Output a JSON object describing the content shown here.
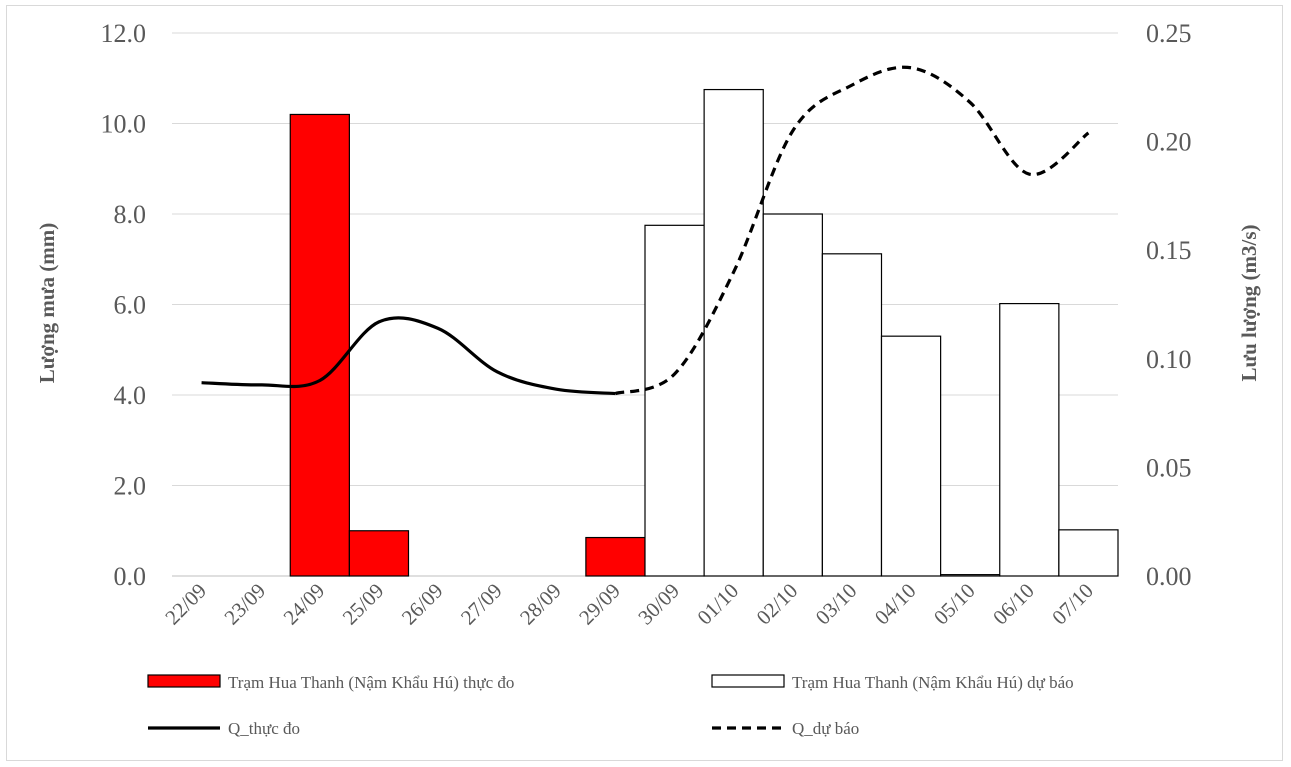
{
  "chart_data": {
    "type": "bar",
    "categories": [
      "22/09",
      "23/09",
      "24/09",
      "25/09",
      "26/09",
      "27/09",
      "28/09",
      "29/09",
      "30/09",
      "01/10",
      "02/10",
      "03/10",
      "04/10",
      "05/10",
      "06/10",
      "07/10"
    ],
    "ylabel_left": "Lượng mưa (mm)",
    "ylabel_right": "Lưu lượng (m3/s)",
    "ylim_left": [
      0,
      12
    ],
    "ylim_right": [
      0,
      0.25
    ],
    "left_ticks": [
      "0.0",
      "2.0",
      "4.0",
      "6.0",
      "8.0",
      "10.0",
      "12.0"
    ],
    "right_ticks": [
      "0.00",
      "0.05",
      "0.10",
      "0.15",
      "0.20",
      "0.25"
    ],
    "grid": true,
    "series": [
      {
        "name": "Trạm Hua Thanh (Nậm Khẩu Hú) thực đo",
        "kind": "bar",
        "axis": "left",
        "color": "#ff0000",
        "values": [
          null,
          null,
          10.2,
          1.0,
          null,
          null,
          null,
          0.85,
          null,
          null,
          null,
          null,
          null,
          null,
          null,
          null
        ]
      },
      {
        "name": "Trạm Hua Thanh (Nậm Khẩu Hú) dự báo",
        "kind": "bar",
        "axis": "left",
        "color": "#ffffff",
        "values": [
          null,
          null,
          null,
          null,
          null,
          null,
          null,
          null,
          7.75,
          10.75,
          8.0,
          7.12,
          5.3,
          0.03,
          6.02,
          1.02
        ]
      },
      {
        "name": "Q_thực đo",
        "kind": "line",
        "axis": "right",
        "style": "solid",
        "color": "#000000",
        "values": [
          0.089,
          0.088,
          0.09,
          0.117,
          0.114,
          0.094,
          0.086,
          0.084,
          null,
          null,
          null,
          null,
          null,
          null,
          null,
          null
        ]
      },
      {
        "name": "Q_dự báo",
        "kind": "line",
        "axis": "right",
        "style": "dashed",
        "color": "#000000",
        "values": [
          null,
          null,
          null,
          null,
          null,
          null,
          null,
          0.084,
          0.093,
          0.14,
          0.205,
          0.226,
          0.234,
          0.218,
          0.185,
          0.204
        ]
      }
    ],
    "legend_position": "bottom"
  }
}
